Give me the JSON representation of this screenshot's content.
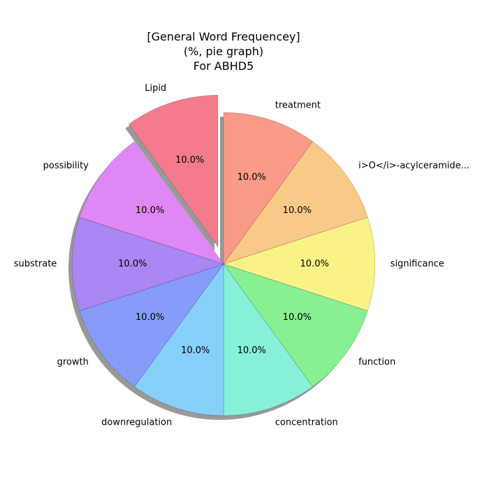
{
  "chart_data": {
    "type": "pie",
    "title": [
      "[General Word Frequencey]",
      "(%, pie graph)",
      "For ABHD5"
    ],
    "slices": [
      {
        "label": "treatment",
        "value": 10.0,
        "pct_label": "10.0%",
        "color": "#f99b87",
        "exploded": false
      },
      {
        "label": "i>O</i>-acylceramide...",
        "value": 10.0,
        "pct_label": "10.0%",
        "color": "#f9c987",
        "exploded": false
      },
      {
        "label": "significance",
        "value": 10.0,
        "pct_label": "10.0%",
        "color": "#f9f387",
        "exploded": false
      },
      {
        "label": "function",
        "value": 10.0,
        "pct_label": "10.0%",
        "color": "#87f093",
        "exploded": false
      },
      {
        "label": "concentration",
        "value": 10.0,
        "pct_label": "10.0%",
        "color": "#87f0d8",
        "exploded": false
      },
      {
        "label": "downregulation",
        "value": 10.0,
        "pct_label": "10.0%",
        "color": "#87d0f9",
        "exploded": false
      },
      {
        "label": "growth",
        "value": 10.0,
        "pct_label": "10.0%",
        "color": "#879cf9",
        "exploded": false
      },
      {
        "label": "substrate",
        "value": 10.0,
        "pct_label": "10.0%",
        "color": "#aa87f3",
        "exploded": false
      },
      {
        "label": "possibility",
        "value": 10.0,
        "pct_label": "10.0%",
        "color": "#e087f6",
        "exploded": false
      },
      {
        "label": "Lipid",
        "value": 10.0,
        "pct_label": "10.0%",
        "color": "#f37b8d",
        "exploded": true
      }
    ],
    "start_angle": "12 o'clock",
    "direction": "clockwise",
    "shadow": true,
    "legend": "none"
  }
}
